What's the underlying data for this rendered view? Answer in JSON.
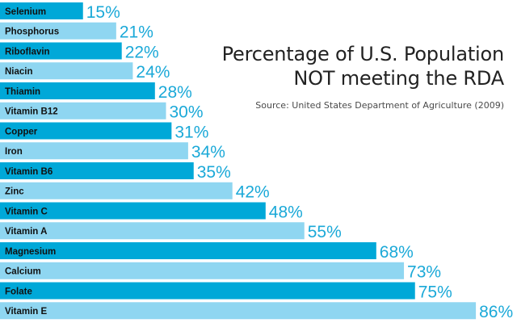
{
  "title_line_1": "Percentage of U.S. Population",
  "title_line_2": "NOT meeting the RDA",
  "source": "Source: United States Department of Agriculture (2009)",
  "colors": {
    "bar_dark": "#00A8D8",
    "bar_light": "#8FD6F1",
    "value_text": "#1BA9D8",
    "label_text": "#111111"
  },
  "chart_data": {
    "type": "bar",
    "orientation": "horizontal",
    "categories": [
      "Selenium",
      "Phosphorus",
      "Riboflavin",
      "Niacin",
      "Thiamin",
      "Vitamin B12",
      "Copper",
      "Iron",
      "Vitamin B6",
      "Zinc",
      "Vitamin C",
      "Vitamin A",
      "Magnesium",
      "Calcium",
      "Folate",
      "Vitamin E"
    ],
    "values": [
      15,
      21,
      22,
      24,
      28,
      30,
      31,
      34,
      35,
      42,
      48,
      55,
      68,
      73,
      75,
      86
    ],
    "value_labels": [
      "15%",
      "21%",
      "22%",
      "24%",
      "28%",
      "30%",
      "31%",
      "34%",
      "35%",
      "42%",
      "48%",
      "55%",
      "68%",
      "73%",
      "75%",
      "86%"
    ],
    "title": "Percentage of U.S. Population NOT meeting the RDA",
    "xlabel": "",
    "ylabel": "",
    "xlim": [
      0,
      86
    ],
    "grid": false,
    "legend": "none"
  }
}
